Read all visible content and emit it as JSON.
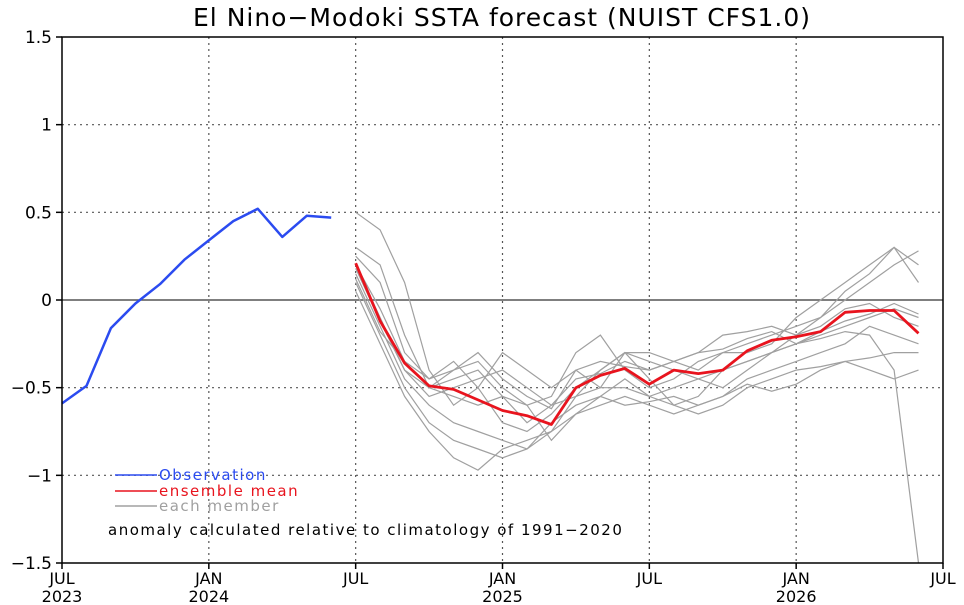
{
  "chart_data": {
    "type": "line",
    "title": "El Nino−Modoki SSTA forecast (NUIST CFS1.0)",
    "ylim": [
      -1.5,
      1.5
    ],
    "yticks": [
      1.5,
      1,
      0.5,
      0,
      -0.5,
      -1,
      -1.5
    ],
    "ytick_labels": [
      "1.5",
      "1",
      "0.5",
      "0",
      "−0.5",
      "−1",
      "−1.5"
    ],
    "xlim_months": [
      0,
      36
    ],
    "xticks": [
      {
        "m": 0,
        "label": "JUL",
        "year": "2023"
      },
      {
        "m": 6,
        "label": "JAN",
        "year": "2024"
      },
      {
        "m": 12,
        "label": "JUL",
        "year": ""
      },
      {
        "m": 18,
        "label": "JAN",
        "year": "2025"
      },
      {
        "m": 24,
        "label": "JUL",
        "year": ""
      },
      {
        "m": 30,
        "label": "JAN",
        "year": "2026"
      },
      {
        "m": 36,
        "label": "JUL",
        "year": ""
      }
    ],
    "grid": true,
    "legend_position": "bottom-left",
    "annotation": "anomaly calculated relative to climatology of 1991−2020",
    "colors": {
      "observation": "#2b4bf0",
      "ensemble_mean": "#e8141e",
      "member": "#a0a0a0",
      "zero_line": "#555555"
    },
    "series": [
      {
        "name": "Observation",
        "x": [
          0,
          1,
          2,
          3,
          4,
          5,
          6,
          7,
          8,
          9,
          10,
          11
        ],
        "values": [
          -0.59,
          -0.49,
          -0.16,
          -0.02,
          0.09,
          0.23,
          0.34,
          0.45,
          0.52,
          0.36,
          0.48,
          0.47
        ]
      },
      {
        "name": "ensemble mean",
        "x_start": 12,
        "values": [
          0.21,
          -0.12,
          -0.36,
          -0.49,
          -0.51,
          -0.57,
          -0.63,
          -0.66,
          -0.71,
          -0.5,
          -0.43,
          -0.39,
          -0.48,
          -0.4,
          -0.42,
          -0.4,
          -0.29,
          -0.23,
          -0.21,
          -0.18,
          -0.07,
          -0.06,
          -0.06,
          -0.19
        ]
      }
    ],
    "members_label": "each member",
    "members_x_start": 12,
    "members": [
      [
        0.5,
        0.4,
        0.1,
        -0.4,
        -0.6,
        -0.5,
        -0.3,
        -0.4,
        -0.5,
        -0.4,
        -0.5,
        -0.3,
        -0.3,
        -0.35,
        -0.4,
        -0.3,
        -0.25,
        -0.2,
        -0.15,
        -0.1,
        0.0,
        0.1,
        0.2,
        0.28
      ],
      [
        0.3,
        0.2,
        -0.2,
        -0.5,
        -0.4,
        -0.35,
        -0.5,
        -0.6,
        -0.55,
        -0.3,
        -0.2,
        -0.4,
        -0.5,
        -0.45,
        -0.35,
        -0.3,
        -0.3,
        -0.25,
        -0.1,
        0.0,
        0.1,
        0.2,
        0.3,
        0.2
      ],
      [
        0.2,
        -0.1,
        -0.4,
        -0.55,
        -0.5,
        -0.45,
        -0.4,
        -0.5,
        -0.6,
        -0.55,
        -0.4,
        -0.3,
        -0.35,
        -0.4,
        -0.45,
        -0.5,
        -0.4,
        -0.3,
        -0.2,
        -0.1,
        0.05,
        0.15,
        0.3,
        0.1
      ],
      [
        0.15,
        -0.15,
        -0.45,
        -0.6,
        -0.7,
        -0.75,
        -0.8,
        -0.85,
        -0.75,
        -0.55,
        -0.5,
        -0.5,
        -0.55,
        -0.5,
        -0.45,
        -0.4,
        -0.35,
        -0.3,
        -0.25,
        -0.2,
        -0.15,
        -0.1,
        -0.05,
        -0.1
      ],
      [
        0.1,
        -0.2,
        -0.5,
        -0.7,
        -0.8,
        -0.85,
        -0.9,
        -0.85,
        -0.7,
        -0.6,
        -0.55,
        -0.6,
        -0.58,
        -0.55,
        -0.6,
        -0.55,
        -0.45,
        -0.4,
        -0.35,
        -0.3,
        -0.25,
        -0.15,
        -0.2,
        -0.25
      ],
      [
        0.05,
        -0.25,
        -0.55,
        -0.75,
        -0.9,
        -0.97,
        -0.85,
        -0.8,
        -0.75,
        -0.65,
        -0.6,
        -0.55,
        -0.6,
        -0.65,
        -0.6,
        -0.55,
        -0.48,
        -0.52,
        -0.48,
        -0.4,
        -0.35,
        -0.33,
        -0.3,
        -0.3
      ],
      [
        0.2,
        -0.05,
        -0.35,
        -0.45,
        -0.35,
        -0.5,
        -0.7,
        -0.75,
        -0.65,
        -0.5,
        -0.4,
        -0.3,
        -0.45,
        -0.6,
        -0.55,
        -0.4,
        -0.35,
        -0.3,
        -0.25,
        -0.18,
        -0.12,
        -0.08,
        -0.02,
        -0.08
      ],
      [
        0.25,
        0.1,
        -0.3,
        -0.45,
        -0.4,
        -0.3,
        -0.45,
        -0.55,
        -0.62,
        -0.4,
        -0.35,
        -0.38,
        -0.4,
        -0.35,
        -0.3,
        -0.2,
        -0.18,
        -0.15,
        -0.2,
        -0.15,
        -0.05,
        -0.02,
        -0.1,
        -0.15
      ],
      [
        0.18,
        -0.12,
        -0.4,
        -0.5,
        -0.55,
        -0.6,
        -0.55,
        -0.6,
        -0.8,
        -0.65,
        -0.55,
        -0.45,
        -0.55,
        -0.6,
        -0.65,
        -0.6,
        -0.5,
        -0.45,
        -0.4,
        -0.38,
        -0.35,
        -0.4,
        -0.45,
        -0.4
      ],
      [
        0.12,
        -0.18,
        -0.35,
        -0.5,
        -0.45,
        -0.4,
        -0.55,
        -0.7,
        -0.6,
        -0.45,
        -0.42,
        -0.35,
        -0.4,
        -0.35,
        -0.3,
        -0.28,
        -0.22,
        -0.18,
        -0.25,
        -0.22,
        -0.18,
        -0.2,
        -0.4,
        -1.5
      ]
    ]
  }
}
